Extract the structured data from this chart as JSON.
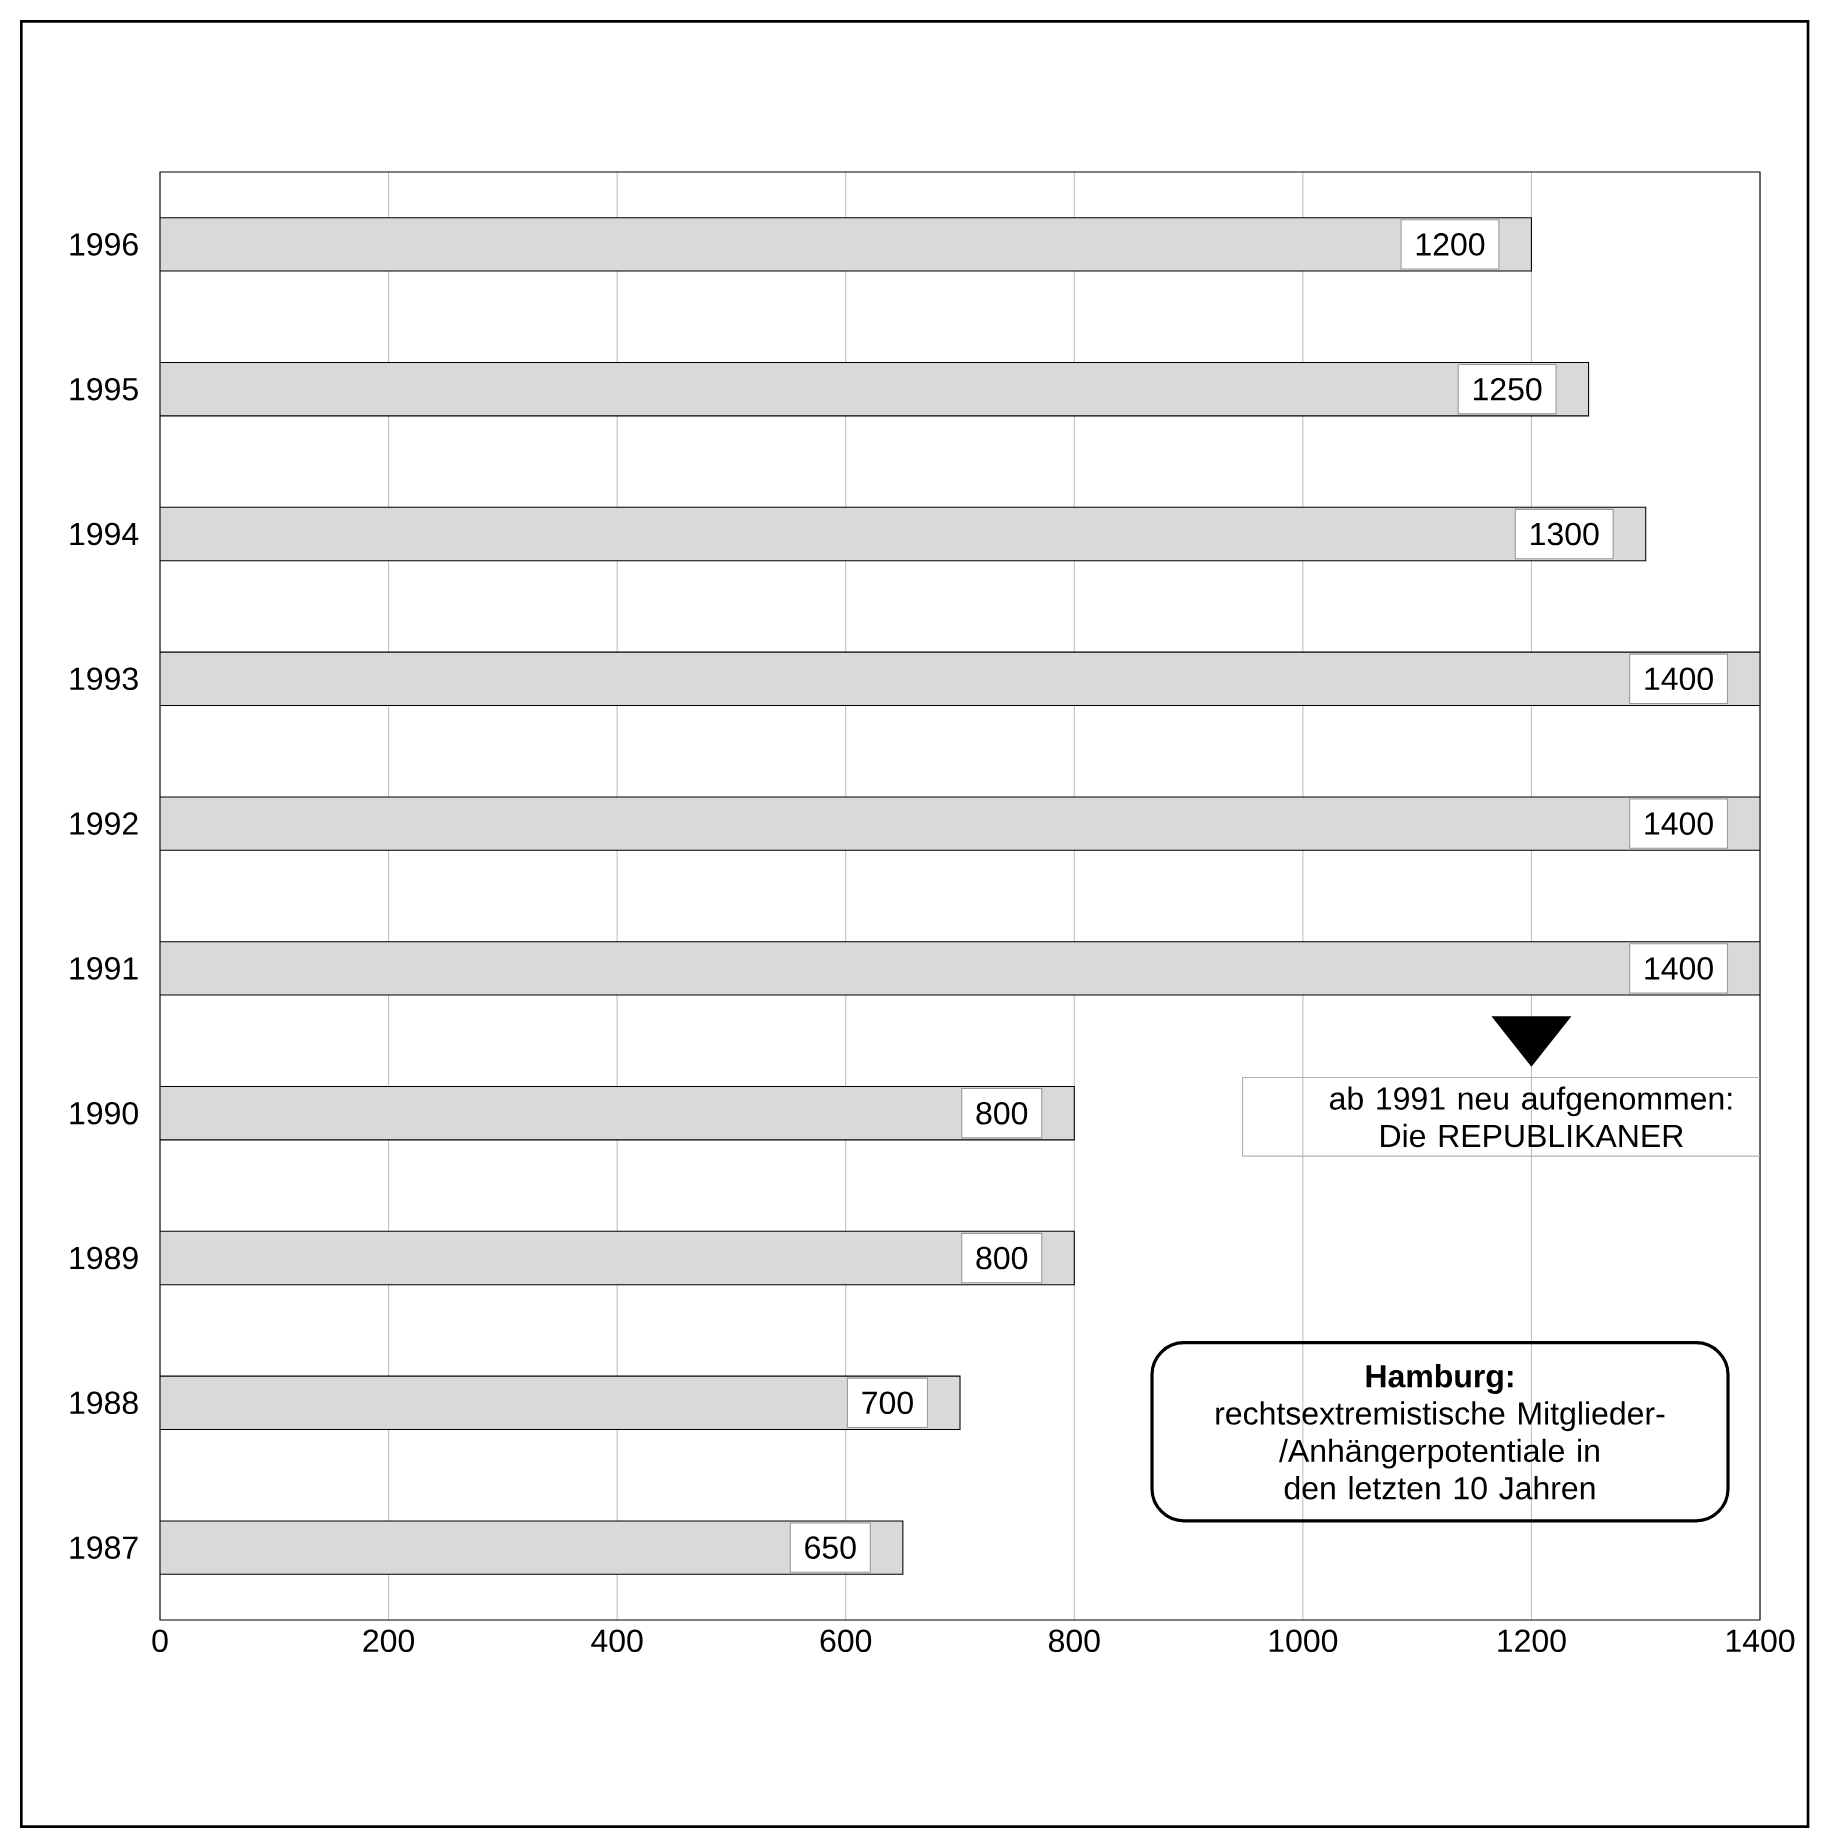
{
  "chart_data": {
    "type": "bar",
    "orientation": "horizontal",
    "title": "Hamburg:",
    "subtitle": "rechtsextremistische Mitglieder-/Anhängerpotentiale in den letzten 10 Jahren",
    "categories": [
      "1996",
      "1995",
      "1994",
      "1993",
      "1992",
      "1991",
      "1990",
      "1989",
      "1988",
      "1987"
    ],
    "values": [
      1200,
      1250,
      1300,
      1400,
      1400,
      1400,
      800,
      800,
      700,
      650
    ],
    "color": "#d9d9d9",
    "xlim": [
      0,
      1400
    ],
    "xticks": [
      0,
      200,
      400,
      600,
      800,
      1000,
      1200,
      1400
    ],
    "grid": "x",
    "data_labels": true,
    "annotations": [
      "ab 1991 neu aufgenommen: Die REPUBLIKANER"
    ]
  }
}
